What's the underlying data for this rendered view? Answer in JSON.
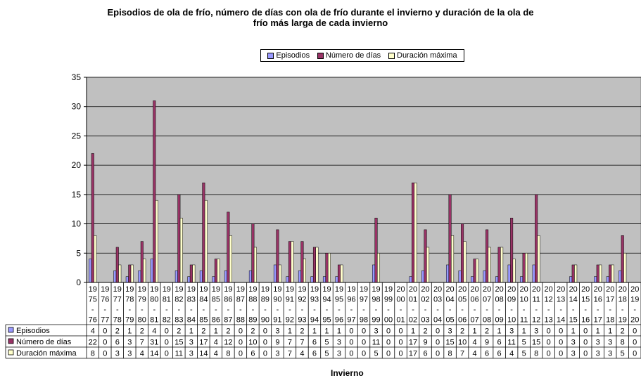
{
  "chart_data": {
    "type": "bar",
    "title_line1": "Episodios de ola de frío, número de días con ola de frío durante el invierno y duración de la ola de",
    "title_line2": "frío más larga de cada invierno",
    "xlabel": "Invierno",
    "ylim": [
      0,
      35
    ],
    "yticks": [
      0,
      5,
      10,
      15,
      20,
      25,
      30,
      35
    ],
    "grid": true,
    "legend_position": "top-center",
    "categories": [
      [
        "19",
        "75",
        "-",
        "76"
      ],
      [
        "19",
        "76",
        "-",
        "77"
      ],
      [
        "19",
        "77",
        "-",
        "78"
      ],
      [
        "19",
        "78",
        "-",
        "79"
      ],
      [
        "19",
        "79",
        "-",
        "80"
      ],
      [
        "19",
        "80",
        "-",
        "81"
      ],
      [
        "19",
        "81",
        "-",
        "82"
      ],
      [
        "19",
        "82",
        "-",
        "83"
      ],
      [
        "19",
        "83",
        "-",
        "84"
      ],
      [
        "19",
        "84",
        "-",
        "85"
      ],
      [
        "19",
        "85",
        "-",
        "86"
      ],
      [
        "19",
        "86",
        "-",
        "87"
      ],
      [
        "19",
        "87",
        "-",
        "88"
      ],
      [
        "19",
        "88",
        "-",
        "89"
      ],
      [
        "19",
        "89",
        "-",
        "90"
      ],
      [
        "19",
        "90",
        "-",
        "91"
      ],
      [
        "19",
        "91",
        "-",
        "92"
      ],
      [
        "19",
        "92",
        "-",
        "93"
      ],
      [
        "19",
        "93",
        "-",
        "94"
      ],
      [
        "19",
        "94",
        "-",
        "95"
      ],
      [
        "19",
        "95",
        "-",
        "96"
      ],
      [
        "19",
        "96",
        "-",
        "97"
      ],
      [
        "19",
        "97",
        "-",
        "98"
      ],
      [
        "19",
        "98",
        "-",
        "99"
      ],
      [
        "19",
        "99",
        "-",
        "00"
      ],
      [
        "20",
        "00",
        "-",
        "01"
      ],
      [
        "20",
        "01",
        "-",
        "02"
      ],
      [
        "20",
        "02",
        "-",
        "03"
      ],
      [
        "20",
        "03",
        "-",
        "04"
      ],
      [
        "20",
        "04",
        "-",
        "05"
      ],
      [
        "20",
        "05",
        "-",
        "06"
      ],
      [
        "20",
        "06",
        "-",
        "07"
      ],
      [
        "20",
        "07",
        "-",
        "08"
      ],
      [
        "20",
        "08",
        "-",
        "09"
      ],
      [
        "20",
        "09",
        "-",
        "10"
      ],
      [
        "20",
        "10",
        "-",
        "11"
      ],
      [
        "20",
        "11",
        "-",
        "12"
      ],
      [
        "20",
        "12",
        "-",
        "13"
      ],
      [
        "20",
        "13",
        "-",
        "14"
      ],
      [
        "20",
        "14",
        "-",
        "15"
      ],
      [
        "20",
        "15",
        "-",
        "16"
      ],
      [
        "20",
        "16",
        "-",
        "17"
      ],
      [
        "20",
        "17",
        "-",
        "18"
      ],
      [
        "20",
        "18",
        "-",
        "19"
      ],
      [
        "20",
        "19",
        "-",
        "20"
      ]
    ],
    "series": [
      {
        "name": "Episodios",
        "color": "#9999ff",
        "values": [
          4,
          0,
          2,
          1,
          2,
          4,
          0,
          2,
          1,
          2,
          1,
          2,
          0,
          2,
          0,
          3,
          1,
          2,
          1,
          1,
          1,
          0,
          0,
          3,
          0,
          0,
          1,
          2,
          0,
          3,
          2,
          1,
          2,
          1,
          3,
          1,
          3,
          0,
          0,
          1,
          0,
          1,
          1,
          2,
          0
        ]
      },
      {
        "name": "Número de días",
        "color": "#993366",
        "values": [
          22,
          0,
          6,
          3,
          7,
          31,
          0,
          15,
          3,
          17,
          4,
          12,
          0,
          10,
          0,
          9,
          7,
          7,
          6,
          5,
          3,
          0,
          0,
          11,
          0,
          0,
          17,
          9,
          0,
          15,
          10,
          4,
          9,
          6,
          11,
          5,
          15,
          0,
          0,
          3,
          0,
          3,
          3,
          8,
          0
        ]
      },
      {
        "name": "Duración máxima",
        "color": "#ffffcc",
        "values": [
          8,
          0,
          3,
          3,
          4,
          14,
          0,
          11,
          3,
          14,
          4,
          8,
          0,
          6,
          0,
          3,
          7,
          4,
          6,
          5,
          3,
          0,
          0,
          5,
          0,
          0,
          17,
          6,
          0,
          8,
          7,
          4,
          6,
          6,
          4,
          5,
          8,
          0,
          0,
          3,
          0,
          3,
          3,
          5,
          0
        ]
      }
    ]
  }
}
